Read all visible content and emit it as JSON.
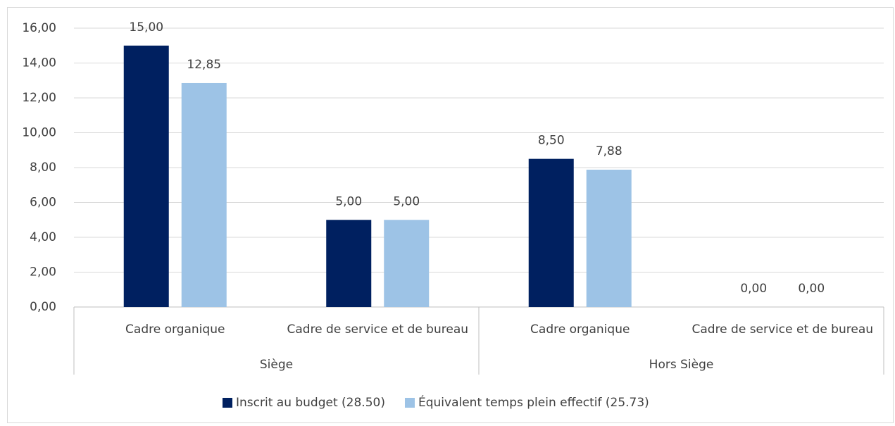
{
  "chart_data": {
    "type": "bar",
    "groups": [
      {
        "name": "Siège",
        "categories": [
          "Cadre organique",
          "Cadre de service et de bureau"
        ]
      },
      {
        "name": "Hors Siège",
        "categories": [
          "Cadre organique",
          "Cadre de service et de bureau"
        ]
      }
    ],
    "series": [
      {
        "name": "Inscrit au budget (28.50)",
        "color": "#002060",
        "values": [
          15,
          5,
          8.5,
          0
        ],
        "value_labels": [
          "15,00",
          "5,00",
          "8,50",
          "0,00"
        ]
      },
      {
        "name": "Équivalent temps plein effectif (25.73)",
        "color": "#9dc3e6",
        "values": [
          12.85,
          5,
          7.88,
          0
        ],
        "value_labels": [
          "12,85",
          "5,00",
          "7,88",
          "0,00"
        ]
      }
    ],
    "ylim": [
      0,
      16
    ],
    "yticks": [
      {
        "value": 0,
        "label": "0,00"
      },
      {
        "value": 2,
        "label": "2,00"
      },
      {
        "value": 4,
        "label": "4,00"
      },
      {
        "value": 6,
        "label": "6,00"
      },
      {
        "value": 8,
        "label": "8,00"
      },
      {
        "value": 10,
        "label": "10,00"
      },
      {
        "value": 12,
        "label": "12,00"
      },
      {
        "value": 14,
        "label": "14,00"
      },
      {
        "value": 16,
        "label": "16,00"
      }
    ],
    "grid": true,
    "legend": "bottom"
  }
}
